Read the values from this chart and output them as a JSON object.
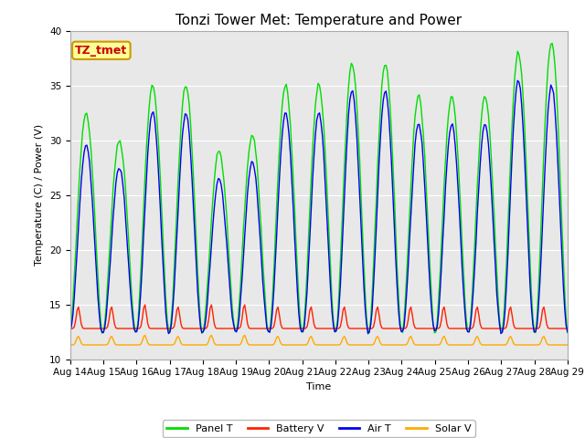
{
  "title": "Tonzi Tower Met: Temperature and Power",
  "xlabel": "Time",
  "ylabel": "Temperature (C) / Power (V)",
  "ylim": [
    10,
    40
  ],
  "xtick_labels": [
    "Aug 14",
    "Aug 15",
    "Aug 16",
    "Aug 17",
    "Aug 18",
    "Aug 19",
    "Aug 20",
    "Aug 21",
    "Aug 22",
    "Aug 23",
    "Aug 24",
    "Aug 25",
    "Aug 26",
    "Aug 27",
    "Aug 28",
    "Aug 29"
  ],
  "annotation_text": "TZ_tmet",
  "annotation_color": "#cc0000",
  "annotation_bg": "#ffff99",
  "annotation_border": "#cc9900",
  "panel_t_color": "#00dd00",
  "battery_v_color": "#ff2200",
  "air_t_color": "#0000ee",
  "solar_v_color": "#ffaa00",
  "fig_bg_color": "#ffffff",
  "plot_bg_color": "#e8e8e8",
  "linewidth": 1.0,
  "title_fontsize": 11,
  "label_fontsize": 8,
  "tick_fontsize": 7.5,
  "legend_fontsize": 8,
  "days": 15,
  "panel_t_base": 12.5,
  "panel_t_amp_day": [
    20,
    17.5,
    22.5,
    22.5,
    16.5,
    18.0,
    22.5,
    22.5,
    24.5,
    24.5,
    21.5,
    21.5,
    21.5,
    25.5,
    26.5
  ],
  "air_t_base": 12.5,
  "air_t_amp_day": [
    17,
    15,
    20,
    20,
    14,
    15.5,
    20,
    20,
    22,
    22,
    19,
    19,
    19,
    23,
    22.5
  ],
  "battery_v_base": 12.8,
  "battery_v_peak": [
    14.8,
    14.8,
    15.0,
    14.8,
    15.0,
    15.0,
    14.8,
    14.8,
    14.8,
    14.8,
    14.8,
    14.8,
    14.8,
    14.8,
    14.8
  ],
  "solar_v_base": 11.3,
  "solar_v_peak": [
    12.1,
    12.1,
    12.2,
    12.1,
    12.2,
    12.2,
    12.1,
    12.1,
    12.1,
    12.1,
    12.1,
    12.1,
    12.1,
    12.1,
    12.1
  ],
  "yticks": [
    10,
    15,
    20,
    25,
    30,
    35,
    40
  ]
}
